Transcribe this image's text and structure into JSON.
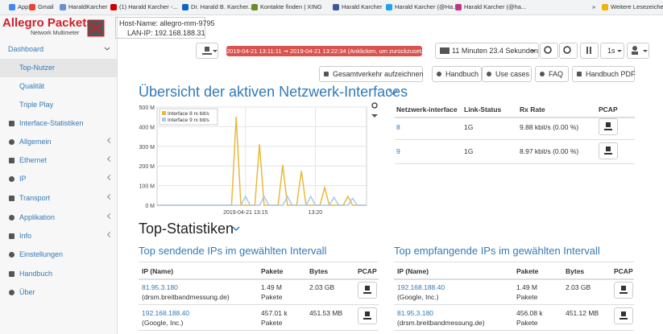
{
  "bookmarks": [
    "Apps",
    "Gmail",
    "HaraldKarcher",
    "(1) Harald Karcher -...",
    "Dr. Harald B. Karcher...",
    "Kontakte finden | XING",
    "Harald Karcher",
    "Harald Karcher (@Ha...",
    "Harald Karcher (@ha...",
    "»",
    "Weitere Lesezeichen"
  ],
  "logo": {
    "title": "Allegro Packets",
    "subtitle": "Network Multimeter"
  },
  "host": {
    "name": "Host-Name: allegro-mm-9795",
    "ip": "LAN-IP: 192.168.188.31"
  },
  "toolbar": {
    "time_range": "2019-04-21 13:11:11 ➞ 2019-04-21 13:22:34  (Anklicken, um zurückzusetzen)",
    "duration": "11 Minuten 23.4 Sekunden",
    "interval": "1s"
  },
  "sidebar": [
    "Dashboard",
    "Top-Nutzer",
    "Qualität",
    "Triple Play",
    "Interface-Statistiken",
    "Allgemein",
    "Ethernet",
    "IP",
    "Transport",
    "Applikation",
    "Info",
    "Einstellungen",
    "Handbuch",
    "Über"
  ],
  "buttons": [
    "Gesamtverkehr aufzeichnen",
    "Handbuch",
    "Use cases",
    "FAQ",
    "Handbuch PDF"
  ],
  "overview": {
    "heading": "Übersicht der aktiven Netzwerk-Interfaces"
  },
  "chart_data": {
    "type": "line",
    "categories": [
      null,
      null,
      null,
      null,
      null,
      null,
      null,
      null,
      null,
      null,
      null,
      null,
      null,
      null,
      null,
      null,
      null,
      null,
      null,
      "2019-04-21 13:15",
      null,
      null,
      null,
      null,
      null,
      null,
      null,
      null,
      null,
      null,
      null,
      null,
      null,
      null,
      "13:20",
      null,
      null,
      null,
      null,
      null,
      null,
      null,
      null,
      null,
      null,
      null
    ],
    "series": [
      {
        "name": "Interface 8 rx bit/s",
        "color": "#e8b93a",
        "values": [
          0,
          0,
          0,
          0,
          0,
          0,
          0,
          0,
          0,
          0,
          0,
          0,
          0,
          0,
          0,
          0,
          0,
          450,
          0,
          0,
          0,
          0,
          310,
          0,
          0,
          0,
          0,
          205,
          0,
          0,
          0,
          175,
          0,
          0,
          0,
          0,
          90,
          0,
          0,
          0,
          0,
          45,
          0,
          0,
          0,
          0
        ]
      },
      {
        "name": "Interface 9 rx bit/s",
        "color": "#a9c9ea",
        "values": [
          0,
          0,
          0,
          0,
          0,
          0,
          0,
          0,
          0,
          0,
          0,
          0,
          0,
          0,
          0,
          0,
          0,
          0,
          0,
          45,
          0,
          0,
          0,
          45,
          0,
          0,
          0,
          0,
          45,
          0,
          0,
          0,
          0,
          45,
          0,
          0,
          0,
          0,
          40,
          0,
          0,
          0,
          35,
          0,
          0,
          0
        ]
      }
    ],
    "ylim": [
      0,
      500
    ],
    "yticks": [
      {
        "value": 0,
        "label": "0 M"
      },
      {
        "value": 100,
        "label": "100 M"
      },
      {
        "value": 200,
        "label": "200 M"
      },
      {
        "value": 300,
        "label": "300 M"
      },
      {
        "value": 400,
        "label": "400 M"
      },
      {
        "value": 500,
        "label": "500 M"
      }
    ],
    "grid": true,
    "legend": "upper left"
  },
  "interfaces": {
    "columns": [
      "Netzwerk-interface",
      "Link-Status",
      "Rx Rate",
      "PCAP"
    ],
    "rows": [
      [
        "8",
        "1G",
        "9.88 kbit/s (0.00 %)"
      ],
      [
        "9",
        "1G",
        "8.97 kbit/s (0.00 %)"
      ]
    ]
  },
  "stats": {
    "heading": "Top-Statistiken",
    "sending": {
      "title": "Top sendende IPs im gewählten Intervall",
      "columns": [
        "IP (Name)",
        "Pakete",
        "Bytes",
        "PCAP"
      ],
      "rows": [
        {
          "ip": "81.95.3.180",
          "name": "(drsm.breitbandmessung.de)",
          "packets": "1.49 M",
          "unit": "Pakete",
          "bytes": "2.03 GB"
        },
        {
          "ip": "192.168.188.40",
          "name": "(Google, Inc.)",
          "packets": "457.01 k",
          "unit": "Pakete",
          "bytes": "451.53 MB"
        }
      ]
    },
    "receiving": {
      "title": "Top empfangende IPs im gewählten Intervall",
      "columns": [
        "IP (Name)",
        "Pakete",
        "Bytes",
        "PCAP"
      ],
      "rows": [
        {
          "ip": "192.168.188.40",
          "name": "(Google, Inc.)",
          "packets": "1.49 M",
          "unit": "Pakete",
          "bytes": "2.03 GB"
        },
        {
          "ip": "81.95.3.180",
          "name": "(drsm.breitbandmessung.de)",
          "packets": "456.08 k",
          "unit": "Pakete",
          "bytes": "451.12 MB"
        }
      ]
    }
  }
}
